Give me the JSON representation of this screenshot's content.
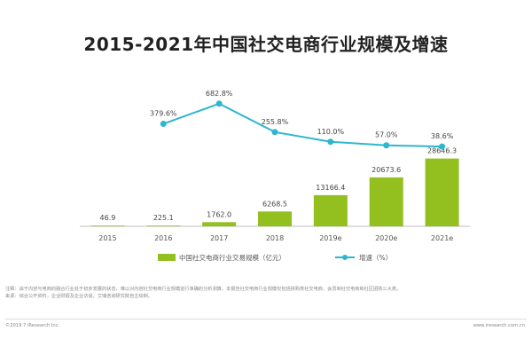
{
  "chart_data": {
    "type": "bar",
    "title": "2015-2021年中国社交电商行业规模及增速",
    "categories": [
      "2015",
      "2016",
      "2017",
      "2018",
      "2019e",
      "2020e",
      "2021e"
    ],
    "series": [
      {
        "name": "中国社交电商行业交易规模（亿元）",
        "type": "bar",
        "values": [
          46.9,
          225.1,
          1762.0,
          6268.5,
          13166.4,
          20673.6,
          28646.3
        ],
        "labels": [
          "46.9",
          "225.1",
          "1762.0",
          "6268.5",
          "13166.4",
          "20673.6",
          "28646.3"
        ],
        "color": "#93c01f"
      },
      {
        "name": "增速（%）",
        "type": "line",
        "values": [
          null,
          379.6,
          682.8,
          255.8,
          110.0,
          57.0,
          38.6
        ],
        "labels": [
          "",
          "379.6%",
          "682.8%",
          "255.8%",
          "110.0%",
          "57.0%",
          "38.6%"
        ],
        "color": "#2fb6cf"
      }
    ],
    "ylim": [
      0,
      30000
    ],
    "y2lim": [
      0,
      800
    ],
    "grid": false,
    "legend": "bottom-center"
  },
  "footnote": "注释：由于内容与电商的融合行业处于初步发展的状态，难以对内容社交电商行业规模进行准确的分析测算，本报告社交电商行业规模仅包括拼购类社交电商、会员制社交电商和社区团购三大类。",
  "source": "来源：综合公开资料，企业财报及企业访谈，艾瑞咨询研究院自主绘制。",
  "copyright": "©2019.7 iResearch Inc.",
  "website": "www.iresearch.com.cn"
}
